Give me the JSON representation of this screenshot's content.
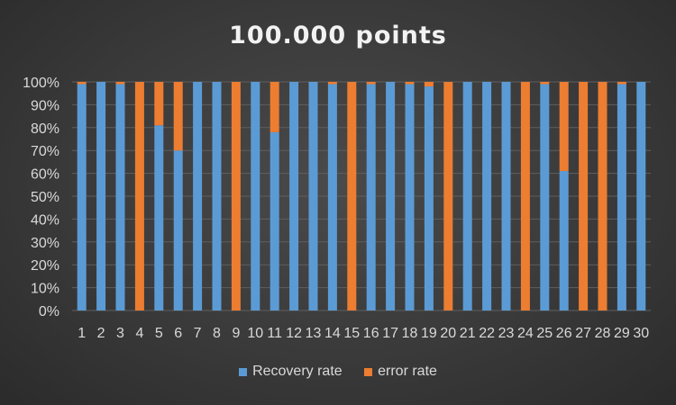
{
  "chart_data": {
    "type": "bar",
    "stacked": "percent",
    "title": "100.000 points",
    "xlabel": "",
    "ylabel": "",
    "ylim": [
      0,
      100
    ],
    "yticks": [
      "0%",
      "10%",
      "20%",
      "30%",
      "40%",
      "50%",
      "60%",
      "70%",
      "80%",
      "90%",
      "100%"
    ],
    "categories": [
      "1",
      "2",
      "3",
      "4",
      "5",
      "6",
      "7",
      "8",
      "9",
      "10",
      "11",
      "12",
      "13",
      "14",
      "15",
      "16",
      "17",
      "18",
      "19",
      "20",
      "21",
      "22",
      "23",
      "24",
      "25",
      "26",
      "27",
      "28",
      "29",
      "30"
    ],
    "series": [
      {
        "name": "Recovery rate",
        "color": "#5b9bd5",
        "values": [
          99,
          100,
          99,
          0,
          81,
          70,
          100,
          100,
          0,
          100,
          78,
          100,
          100,
          99,
          0,
          99,
          100,
          99,
          98,
          0,
          100,
          100,
          100,
          0,
          99,
          61,
          0,
          0,
          99,
          100
        ]
      },
      {
        "name": "error rate",
        "color": "#ed7d31",
        "values": [
          1,
          0,
          1,
          100,
          19,
          30,
          0,
          0,
          100,
          0,
          22,
          0,
          0,
          1,
          100,
          1,
          0,
          1,
          2,
          100,
          0,
          0,
          0,
          100,
          1,
          39,
          100,
          100,
          1,
          0
        ]
      }
    ],
    "legend_position": "bottom",
    "grid": true
  }
}
